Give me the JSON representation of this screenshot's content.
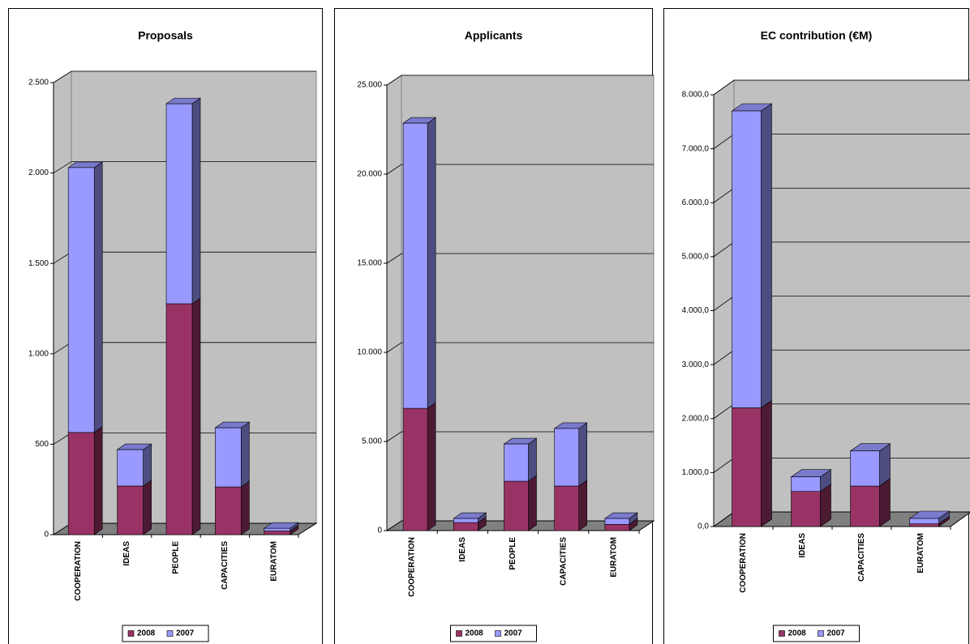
{
  "chart_data": [
    {
      "type": "bar",
      "stacked": true,
      "title": "Proposals",
      "categories": [
        "COOPERATION",
        "IDEAS",
        "PEOPLE",
        "CAPACITIES",
        "EURATOM"
      ],
      "series": [
        {
          "name": "2008",
          "color": "#993366",
          "values": [
            565,
            269,
            1277,
            264,
            20
          ]
        },
        {
          "name": "2007",
          "color": "#9999ff",
          "values": [
            1465,
            201,
            1106,
            327,
            15
          ]
        }
      ],
      "ylim": [
        0,
        2500
      ],
      "yticks": [
        0,
        500,
        {
          "value": 1000,
          "label": "1.000"
        },
        {
          "value": 1500,
          "label": "1.500"
        },
        {
          "value": 2000,
          "label": "2.000"
        },
        {
          "value": 2500,
          "label": "2.500"
        }
      ],
      "grid": true,
      "legend": "bottom"
    },
    {
      "type": "bar",
      "stacked": true,
      "title": "Applicants",
      "categories": [
        "COOPERATION",
        "IDEAS",
        "PEOPLE",
        "CAPACITIES",
        "EURATOM"
      ],
      "series": [
        {
          "name": "2008",
          "color": "#993366",
          "values": [
            6860,
            450,
            2770,
            2500,
            350
          ]
        },
        {
          "name": "2007",
          "color": "#9999ff",
          "values": [
            16000,
            230,
            2090,
            3230,
            330
          ]
        }
      ],
      "ylim": [
        0,
        25000
      ],
      "yticks": [
        0,
        {
          "value": 5000,
          "label": "5.000"
        },
        {
          "value": 10000,
          "label": "10.000"
        },
        {
          "value": 15000,
          "label": "15.000"
        },
        {
          "value": 20000,
          "label": "20.000"
        },
        {
          "value": 25000,
          "label": "25.000"
        }
      ],
      "grid": true,
      "legend": "bottom"
    },
    {
      "type": "bar",
      "stacked": true,
      "title": "EC contribution (€M)",
      "categories": [
        "COOPERATION",
        "IDEAS",
        "CAPACITIES",
        "EURATOM"
      ],
      "series": [
        {
          "name": "2008",
          "color": "#993366",
          "values": [
            2200,
            650,
            750,
            50
          ]
        },
        {
          "name": "2007",
          "color": "#9999ff",
          "values": [
            5500,
            270,
            650,
            100
          ]
        }
      ],
      "ylim": [
        0,
        8000
      ],
      "yticks": [
        {
          "value": 0,
          "label": "0,0"
        },
        {
          "value": 1000,
          "label": "1.000,0"
        },
        {
          "value": 2000,
          "label": "2.000,0"
        },
        {
          "value": 3000,
          "label": "3.000,0"
        },
        {
          "value": 4000,
          "label": "4.000,0"
        },
        {
          "value": 5000,
          "label": "5.000,0"
        },
        {
          "value": 6000,
          "label": "6.000,0"
        },
        {
          "value": 7000,
          "label": "7.000,0"
        },
        {
          "value": 8000,
          "label": "8.000,0"
        }
      ],
      "grid": true,
      "legend": "bottom"
    }
  ]
}
